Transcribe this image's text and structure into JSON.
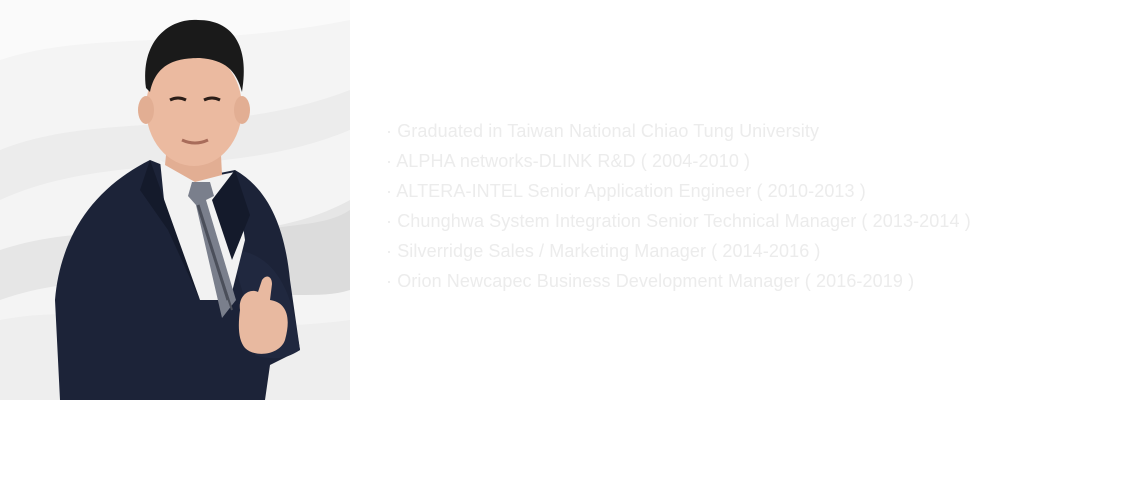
{
  "portrait": {
    "icon": "person-portrait",
    "background_color": "#f3f3f3",
    "suit_color": "#1c2338"
  },
  "bio": {
    "text_color": "#ececec",
    "items": [
      "· Graduated in Taiwan National Chiao Tung University",
      "· ALPHA networks-DLINK R&D ( 2004-2010 )",
      "· ALTERA-INTEL Senior Application Engineer ( 2010-2013 )",
      "· Chunghwa System Integration Senior Technical Manager ( 2013-2014 )",
      "· Silverridge Sales / Marketing Manager ( 2014-2016 )",
      "· Orion Newcapec Business Development Manager ( 2016-2019 )"
    ]
  }
}
